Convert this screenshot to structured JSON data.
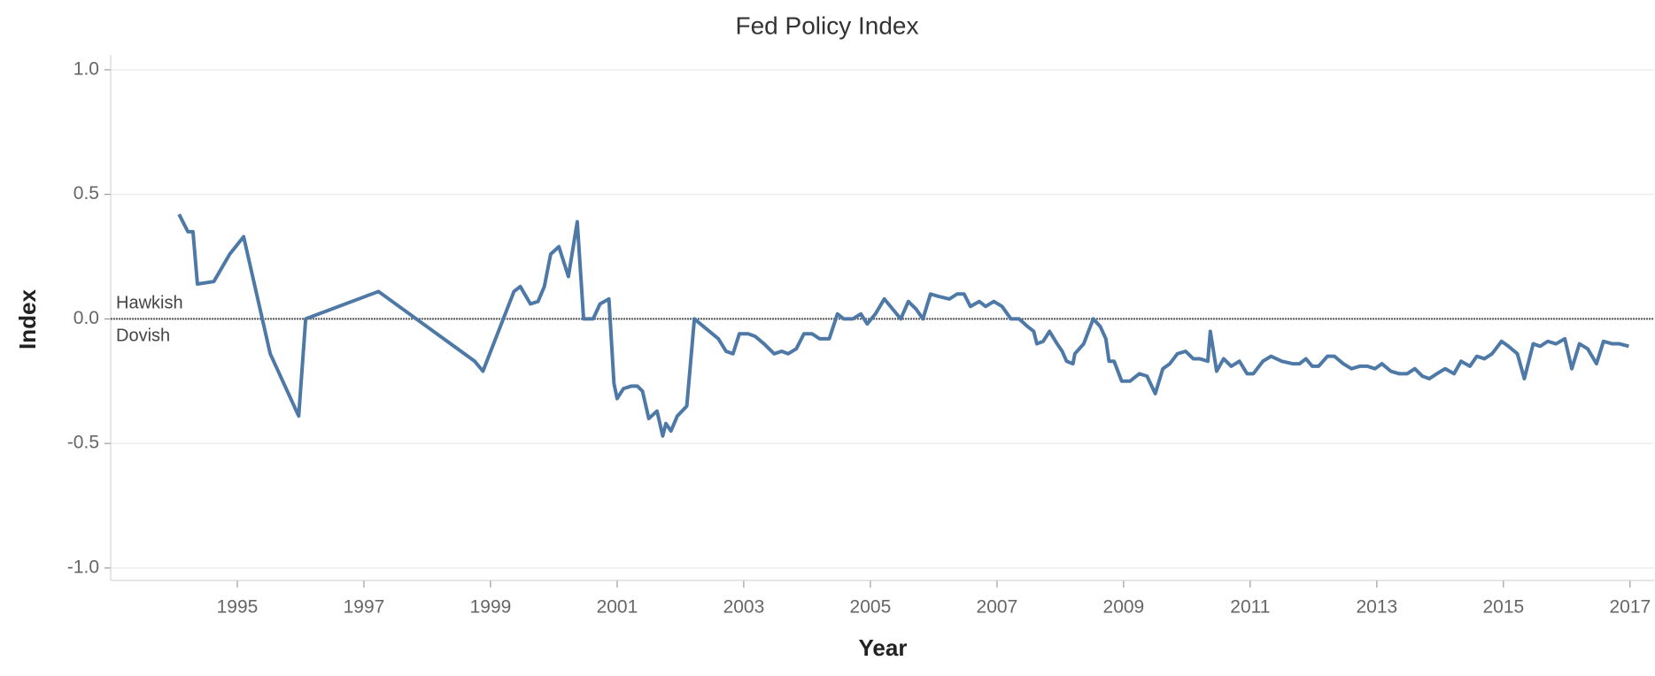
{
  "chart_data": {
    "type": "line",
    "title": "Fed Policy Index",
    "x_label": "Year",
    "y_label": "Index",
    "color": "#4e79a7",
    "annotations": [
      "Hawkish",
      "Dovish"
    ],
    "reference_line": 0,
    "xlim": [
      1993.0,
      2017.38
    ],
    "xticks": [
      1995,
      1997,
      1999,
      2001,
      2003,
      2005,
      2007,
      2009,
      2011,
      2013,
      2015,
      2017
    ],
    "ylim": [
      -1.05,
      1.06
    ],
    "yticks": [
      {
        "value": -1,
        "label": "-1.0"
      },
      -0.5,
      {
        "value": 0,
        "label": "0.0"
      },
      0.5,
      {
        "value": 1,
        "label": "1.0"
      }
    ],
    "grid": true,
    "x": [
      1994.08,
      1994.22,
      1994.3,
      1994.37,
      1994.63,
      1994.88,
      1995.1,
      1995.52,
      1995.97,
      1996.08,
      1997.23,
      1998.75,
      1998.88,
      1999.37,
      1999.47,
      1999.63,
      1999.75,
      1999.85,
      1999.95,
      2000.08,
      2000.23,
      2000.37,
      2000.47,
      2000.62,
      2000.73,
      2000.87,
      2000.95,
      2001.0,
      2001.1,
      2001.22,
      2001.32,
      2001.4,
      2001.5,
      2001.63,
      2001.72,
      2001.77,
      2001.85,
      2001.95,
      2002.1,
      2002.22,
      2002.6,
      2002.72,
      2002.83,
      2002.93,
      2003.07,
      2003.18,
      2003.32,
      2003.48,
      2003.6,
      2003.7,
      2003.83,
      2003.95,
      2004.08,
      2004.2,
      2004.35,
      2004.48,
      2004.58,
      2004.72,
      2004.85,
      2004.95,
      2005.08,
      2005.22,
      2005.35,
      2005.48,
      2005.6,
      2005.72,
      2005.83,
      2005.95,
      2006.08,
      2006.25,
      2006.37,
      2006.48,
      2006.58,
      2006.72,
      2006.82,
      2006.95,
      2007.08,
      2007.22,
      2007.35,
      2007.48,
      2007.58,
      2007.63,
      2007.73,
      2007.83,
      2007.95,
      2008.03,
      2008.1,
      2008.2,
      2008.23,
      2008.37,
      2008.52,
      2008.63,
      2008.72,
      2008.77,
      2008.85,
      2008.97,
      2009.1,
      2009.25,
      2009.37,
      2009.5,
      2009.62,
      2009.73,
      2009.85,
      2009.98,
      2010.1,
      2010.2,
      2010.33,
      2010.37,
      2010.47,
      2010.58,
      2010.7,
      2010.83,
      2010.95,
      2011.05,
      2011.2,
      2011.33,
      2011.5,
      2011.67,
      2011.78,
      2011.88,
      2011.98,
      2012.08,
      2012.22,
      2012.33,
      2012.47,
      2012.6,
      2012.73,
      2012.85,
      2012.97,
      2013.08,
      2013.22,
      2013.35,
      2013.48,
      2013.6,
      2013.72,
      2013.83,
      2013.95,
      2014.08,
      2014.22,
      2014.33,
      2014.47,
      2014.58,
      2014.7,
      2014.82,
      2014.97,
      2015.08,
      2015.22,
      2015.33,
      2015.47,
      2015.58,
      2015.7,
      2015.83,
      2015.97,
      2016.08,
      2016.2,
      2016.33,
      2016.47,
      2016.58,
      2016.72,
      2016.83,
      2016.98
    ],
    "values": [
      0.42,
      0.35,
      0.35,
      0.14,
      0.15,
      0.26,
      0.33,
      -0.14,
      -0.39,
      0.0,
      0.11,
      -0.17,
      -0.21,
      0.11,
      0.13,
      0.06,
      0.07,
      0.13,
      0.26,
      0.29,
      0.17,
      0.39,
      0.0,
      0.0,
      0.06,
      0.08,
      -0.26,
      -0.32,
      -0.28,
      -0.27,
      -0.27,
      -0.29,
      -0.4,
      -0.37,
      -0.47,
      -0.42,
      -0.45,
      -0.39,
      -0.35,
      0.0,
      -0.08,
      -0.13,
      -0.14,
      -0.06,
      -0.06,
      -0.07,
      -0.1,
      -0.14,
      -0.13,
      -0.14,
      -0.12,
      -0.06,
      -0.06,
      -0.08,
      -0.08,
      0.02,
      0.0,
      0.0,
      0.02,
      -0.02,
      0.02,
      0.08,
      0.04,
      0.0,
      0.07,
      0.04,
      0.0,
      0.1,
      0.09,
      0.08,
      0.1,
      0.1,
      0.05,
      0.07,
      0.05,
      0.07,
      0.05,
      0.0,
      0.0,
      -0.03,
      -0.05,
      -0.1,
      -0.09,
      -0.05,
      -0.1,
      -0.13,
      -0.17,
      -0.18,
      -0.14,
      -0.1,
      0.0,
      -0.03,
      -0.08,
      -0.17,
      -0.17,
      -0.25,
      -0.25,
      -0.22,
      -0.23,
      -0.3,
      -0.2,
      -0.18,
      -0.14,
      -0.13,
      -0.16,
      -0.16,
      -0.17,
      -0.05,
      -0.21,
      -0.16,
      -0.19,
      -0.17,
      -0.22,
      -0.22,
      -0.17,
      -0.15,
      -0.17,
      -0.18,
      -0.18,
      -0.16,
      -0.19,
      -0.19,
      -0.15,
      -0.15,
      -0.18,
      -0.2,
      -0.19,
      -0.19,
      -0.2,
      -0.18,
      -0.21,
      -0.22,
      -0.22,
      -0.2,
      -0.23,
      -0.24,
      -0.22,
      -0.2,
      -0.22,
      -0.17,
      -0.19,
      -0.15,
      -0.16,
      -0.14,
      -0.09,
      -0.11,
      -0.14,
      -0.24,
      -0.1,
      -0.11,
      -0.09,
      -0.1,
      -0.08,
      -0.2,
      -0.1,
      -0.12,
      -0.18,
      -0.09,
      -0.1,
      -0.1,
      -0.11
    ]
  }
}
